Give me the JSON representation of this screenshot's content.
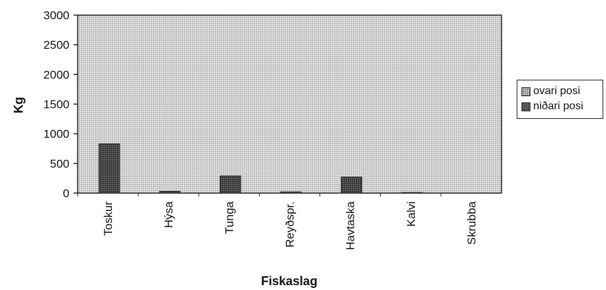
{
  "chart_data": {
    "type": "bar",
    "xlabel": "Fiskaslag",
    "ylabel": "Kg",
    "ylim": [
      0,
      3000
    ],
    "yticks": [
      0,
      500,
      1000,
      1500,
      2000,
      2500,
      3000
    ],
    "categories": [
      "Toskur",
      "Hýsa",
      "Tunga",
      "Reyðspr.",
      "Havtaska",
      "Kalvi",
      "Skrubba"
    ],
    "series": [
      {
        "name": "ovari posi",
        "values": [
          0,
          0,
          0,
          0,
          0,
          0,
          0
        ]
      },
      {
        "name": "niðari posi",
        "values": [
          830,
          30,
          290,
          20,
          270,
          10,
          0
        ]
      }
    ],
    "grid": false,
    "legend_position": "right"
  },
  "colors": {
    "plot_area": "#d4d4d4",
    "ovari_bar": "#cfcfcf",
    "nidari_bar": "#3a3a3a",
    "axis": "#222222"
  }
}
